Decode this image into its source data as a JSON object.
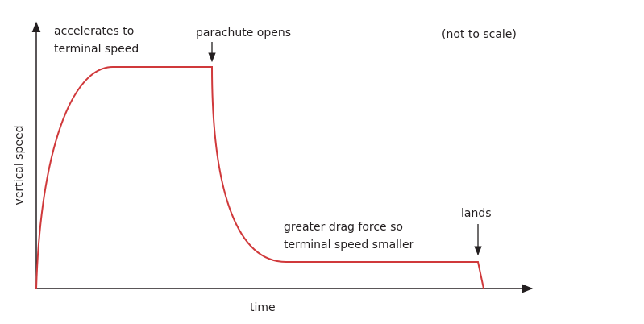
{
  "title_note": "(not to scale)",
  "axes": {
    "y_label": "vertical speed",
    "x_label": "time"
  },
  "annotations": {
    "acceleration": [
      "accelerates to",
      "terminal speed"
    ],
    "parachute": "parachute opens",
    "drag": [
      "greater drag force so",
      "terminal speed smaller"
    ],
    "landing": "lands"
  }
}
